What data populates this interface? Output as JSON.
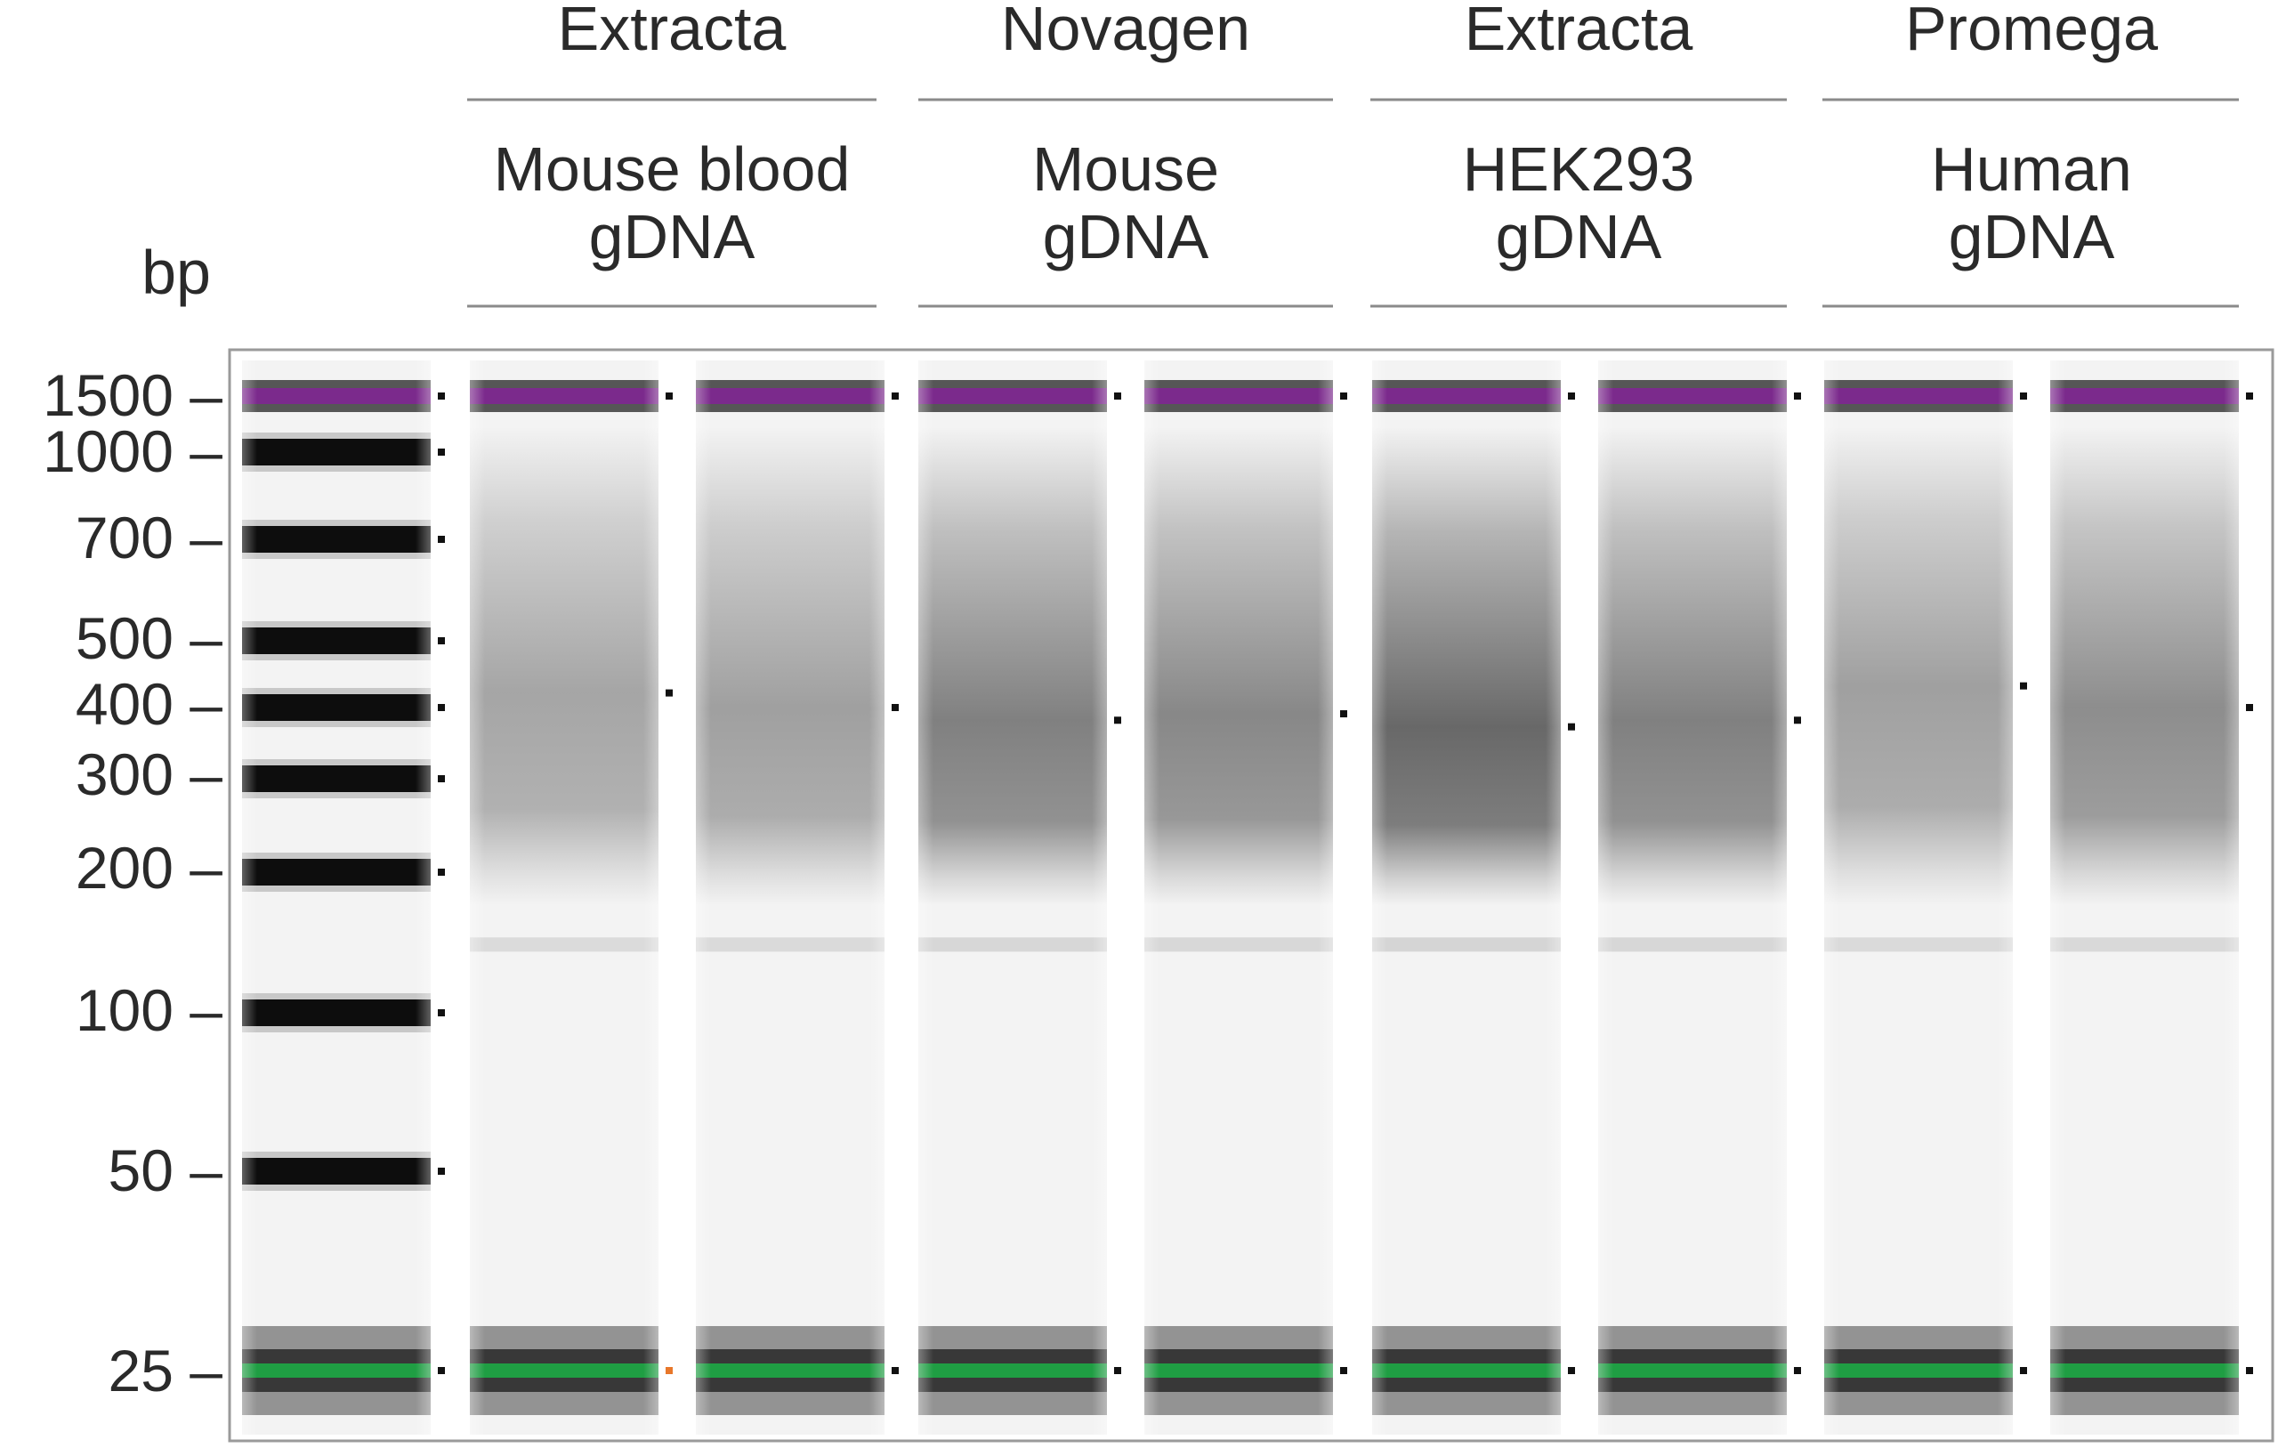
{
  "figure": {
    "unit_label": "bp",
    "groups": [
      {
        "vendor": "Extracta",
        "sample_line1": "Mouse blood",
        "sample_line2": "gDNA"
      },
      {
        "vendor": "Novagen",
        "sample_line1": "Mouse",
        "sample_line2": "gDNA"
      },
      {
        "vendor": "Extracta",
        "sample_line1": "HEK293",
        "sample_line2": "gDNA"
      },
      {
        "vendor": "Promega",
        "sample_line1": "Human",
        "sample_line2": "gDNA"
      }
    ],
    "ladder": [
      {
        "label": "1500 –",
        "bp": 1500
      },
      {
        "label": "1000 –",
        "bp": 1000
      },
      {
        "label": "700 –",
        "bp": 700
      },
      {
        "label": "500 –",
        "bp": 500
      },
      {
        "label": "400 –",
        "bp": 400
      },
      {
        "label": "300 –",
        "bp": 300
      },
      {
        "label": "200 –",
        "bp": 200
      },
      {
        "label": "100 –",
        "bp": 100
      },
      {
        "label": "50 –",
        "bp": 50
      },
      {
        "label": "25 –",
        "bp": 25
      }
    ],
    "markers": {
      "upper_marker_bp": 1500,
      "lower_marker_bp": 25,
      "upper_color": "#7b2a8c",
      "lower_color": "#1f9e43"
    },
    "samples": [
      {
        "group": 0,
        "smear_peak_bp": 420,
        "intensity": 0.42
      },
      {
        "group": 0,
        "smear_peak_bp": 400,
        "intensity": 0.45
      },
      {
        "group": 1,
        "smear_peak_bp": 380,
        "intensity": 0.62
      },
      {
        "group": 1,
        "smear_peak_bp": 390,
        "intensity": 0.58
      },
      {
        "group": 2,
        "smear_peak_bp": 370,
        "intensity": 0.75
      },
      {
        "group": 2,
        "smear_peak_bp": 380,
        "intensity": 0.62
      },
      {
        "group": 3,
        "smear_peak_bp": 430,
        "intensity": 0.45
      },
      {
        "group": 3,
        "smear_peak_bp": 400,
        "intensity": 0.55
      }
    ]
  }
}
